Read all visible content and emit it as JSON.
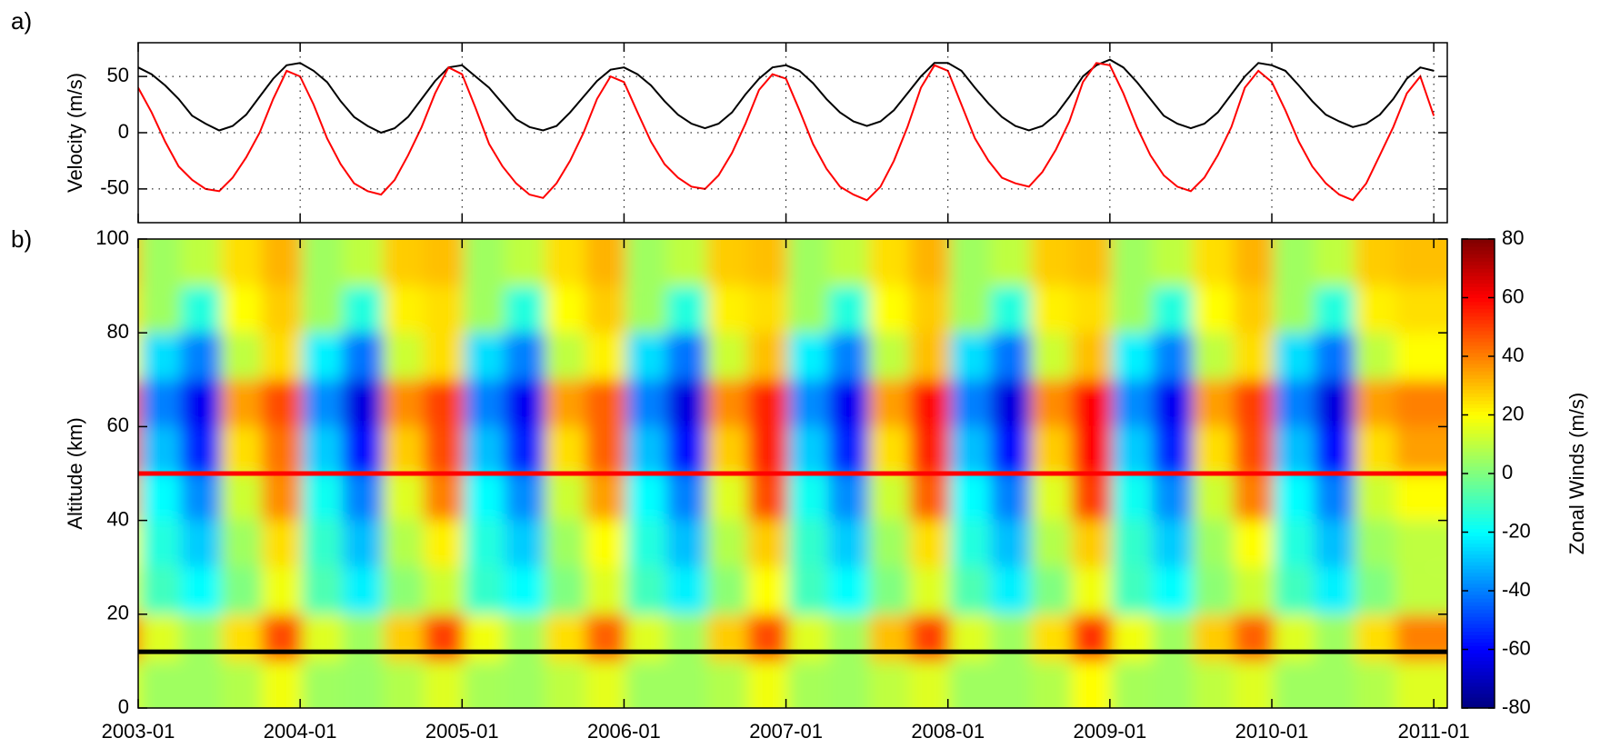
{
  "chart_data": [
    {
      "type": "line",
      "panel_label": "a)",
      "ylabel": "Velocity (m/s)",
      "x": [
        "2003-01",
        "2003-02",
        "2003-03",
        "2003-04",
        "2003-05",
        "2003-06",
        "2003-07",
        "2003-08",
        "2003-09",
        "2003-10",
        "2003-11",
        "2003-12",
        "2004-01",
        "2004-02",
        "2004-03",
        "2004-04",
        "2004-05",
        "2004-06",
        "2004-07",
        "2004-08",
        "2004-09",
        "2004-10",
        "2004-11",
        "2004-12",
        "2005-01",
        "2005-02",
        "2005-03",
        "2005-04",
        "2005-05",
        "2005-06",
        "2005-07",
        "2005-08",
        "2005-09",
        "2005-10",
        "2005-11",
        "2005-12",
        "2006-01",
        "2006-02",
        "2006-03",
        "2006-04",
        "2006-05",
        "2006-06",
        "2006-07",
        "2006-08",
        "2006-09",
        "2006-10",
        "2006-11",
        "2006-12",
        "2007-01",
        "2007-02",
        "2007-03",
        "2007-04",
        "2007-05",
        "2007-06",
        "2007-07",
        "2007-08",
        "2007-09",
        "2007-10",
        "2007-11",
        "2007-12",
        "2008-01",
        "2008-02",
        "2008-03",
        "2008-04",
        "2008-05",
        "2008-06",
        "2008-07",
        "2008-08",
        "2008-09",
        "2008-10",
        "2008-11",
        "2008-12",
        "2009-01",
        "2009-02",
        "2009-03",
        "2009-04",
        "2009-05",
        "2009-06",
        "2009-07",
        "2009-08",
        "2009-09",
        "2009-10",
        "2009-11",
        "2009-12",
        "2010-01",
        "2010-02",
        "2010-03",
        "2010-04",
        "2010-05",
        "2010-06",
        "2010-07",
        "2010-08",
        "2010-09",
        "2010-10",
        "2010-11",
        "2010-12",
        "2011-01"
      ],
      "series": [
        {
          "color": "#000000",
          "values": [
            58,
            52,
            42,
            30,
            15,
            8,
            2,
            6,
            16,
            32,
            48,
            60,
            62,
            55,
            45,
            28,
            14,
            6,
            0,
            4,
            14,
            30,
            46,
            58,
            60,
            50,
            40,
            26,
            12,
            5,
            2,
            6,
            18,
            32,
            46,
            56,
            58,
            52,
            42,
            28,
            16,
            8,
            4,
            8,
            18,
            34,
            48,
            58,
            60,
            55,
            44,
            30,
            18,
            10,
            6,
            10,
            20,
            35,
            50,
            62,
            62,
            55,
            40,
            26,
            14,
            6,
            2,
            6,
            16,
            32,
            50,
            60,
            65,
            58,
            45,
            30,
            15,
            8,
            4,
            8,
            18,
            34,
            50,
            62,
            60,
            55,
            42,
            28,
            16,
            10,
            5,
            8,
            16,
            30,
            48,
            58,
            55
          ]
        },
        {
          "color": "#ff0000",
          "values": [
            40,
            18,
            -8,
            -30,
            -42,
            -50,
            -52,
            -40,
            -22,
            0,
            30,
            55,
            50,
            25,
            -5,
            -28,
            -45,
            -52,
            -55,
            -42,
            -20,
            5,
            35,
            58,
            52,
            22,
            -10,
            -30,
            -45,
            -55,
            -58,
            -45,
            -25,
            0,
            30,
            50,
            45,
            18,
            -8,
            -28,
            -40,
            -48,
            -50,
            -38,
            -18,
            8,
            38,
            52,
            48,
            20,
            -10,
            -32,
            -48,
            -55,
            -60,
            -48,
            -25,
            5,
            40,
            60,
            55,
            25,
            -5,
            -25,
            -40,
            -45,
            -48,
            -35,
            -15,
            10,
            45,
            62,
            60,
            35,
            5,
            -20,
            -38,
            -48,
            -52,
            -40,
            -20,
            5,
            40,
            55,
            45,
            20,
            -8,
            -30,
            -45,
            -55,
            -60,
            -45,
            -20,
            5,
            35,
            50,
            15
          ]
        }
      ],
      "xlim": [
        "2003-01",
        "2011-02"
      ],
      "xticks": [
        "2003-01",
        "2004-01",
        "2005-01",
        "2006-01",
        "2007-01",
        "2008-01",
        "2009-01",
        "2010-01",
        "2011-01"
      ],
      "ylim": [
        -80,
        80
      ],
      "yticks": [
        -50,
        0,
        50
      ],
      "grid": true
    },
    {
      "type": "heatmap",
      "panel_label": "b)",
      "ylabel": "Altitude (km)",
      "colorbar_label": "Zonal Winds (m/s)",
      "colormap": "jet",
      "x": [
        "2003-01",
        "2003-04",
        "2003-07",
        "2003-10",
        "2004-01",
        "2004-04",
        "2004-07",
        "2004-10",
        "2005-01",
        "2005-04",
        "2005-07",
        "2005-10",
        "2006-01",
        "2006-04",
        "2006-07",
        "2006-10",
        "2007-01",
        "2007-04",
        "2007-07",
        "2007-10",
        "2008-01",
        "2008-04",
        "2008-07",
        "2008-10",
        "2009-01",
        "2009-04",
        "2009-07",
        "2009-10",
        "2010-01",
        "2010-04",
        "2010-07",
        "2010-10",
        "2011-01"
      ],
      "y": [
        5,
        15,
        25,
        35,
        45,
        55,
        65,
        75,
        85,
        95
      ],
      "z": [
        [
          15,
          5,
          5,
          8,
          18,
          5,
          4,
          8,
          15,
          6,
          5,
          10,
          16,
          5,
          5,
          8,
          18,
          6,
          5,
          10,
          15,
          5,
          5,
          8,
          20,
          6,
          5,
          10,
          15,
          5,
          5,
          8,
          15
        ],
        [
          45,
          15,
          5,
          25,
          48,
          15,
          5,
          28,
          50,
          18,
          5,
          25,
          45,
          15,
          5,
          28,
          48,
          15,
          5,
          30,
          50,
          15,
          5,
          25,
          52,
          18,
          5,
          28,
          45,
          15,
          5,
          25,
          40
        ],
        [
          15,
          -10,
          -20,
          0,
          18,
          -8,
          -22,
          2,
          12,
          -12,
          -20,
          0,
          15,
          -10,
          -22,
          2,
          20,
          -10,
          -20,
          0,
          15,
          -8,
          -22,
          0,
          18,
          -10,
          -20,
          2,
          12,
          -10,
          -22,
          0,
          10
        ],
        [
          20,
          -15,
          -28,
          5,
          25,
          -12,
          -30,
          8,
          22,
          -15,
          -28,
          5,
          20,
          -15,
          -30,
          8,
          28,
          -12,
          -28,
          5,
          25,
          -15,
          -30,
          8,
          28,
          -12,
          -28,
          5,
          20,
          -15,
          -30,
          5,
          10
        ],
        [
          35,
          -20,
          -38,
          12,
          38,
          -18,
          -40,
          15,
          40,
          -20,
          -38,
          12,
          35,
          -20,
          -40,
          15,
          48,
          -18,
          -38,
          12,
          45,
          -20,
          -40,
          15,
          50,
          -18,
          -38,
          12,
          40,
          -20,
          -40,
          12,
          20
        ],
        [
          45,
          -30,
          -55,
          25,
          42,
          -28,
          -58,
          28,
          48,
          -30,
          -55,
          25,
          45,
          -30,
          -58,
          28,
          55,
          -28,
          -55,
          25,
          55,
          -30,
          -58,
          28,
          60,
          -28,
          -55,
          25,
          48,
          -30,
          -58,
          25,
          35
        ],
        [
          45,
          -40,
          -62,
          35,
          48,
          -38,
          -65,
          38,
          50,
          -40,
          -62,
          35,
          45,
          -40,
          -65,
          38,
          55,
          -38,
          -62,
          35,
          58,
          -40,
          -65,
          38,
          60,
          -38,
          -62,
          35,
          50,
          -40,
          -65,
          35,
          40
        ],
        [
          20,
          -25,
          -40,
          10,
          25,
          -22,
          -42,
          12,
          25,
          -25,
          -40,
          10,
          22,
          -25,
          -42,
          12,
          30,
          -22,
          -40,
          10,
          30,
          -25,
          -42,
          12,
          30,
          -22,
          -40,
          10,
          25,
          -25,
          -42,
          10,
          20
        ],
        [
          25,
          5,
          -15,
          20,
          28,
          5,
          -15,
          22,
          25,
          5,
          -15,
          20,
          28,
          5,
          -15,
          22,
          25,
          5,
          -15,
          20,
          28,
          5,
          -15,
          22,
          25,
          5,
          -15,
          20,
          28,
          5,
          -15,
          22,
          25
        ],
        [
          30,
          5,
          10,
          25,
          32,
          5,
          10,
          28,
          30,
          5,
          10,
          25,
          32,
          5,
          10,
          28,
          30,
          5,
          10,
          25,
          32,
          5,
          10,
          28,
          30,
          5,
          10,
          25,
          32,
          5,
          10,
          28,
          30
        ]
      ],
      "hlines": [
        {
          "value": 50,
          "color": "#ff0000"
        },
        {
          "value": 12,
          "color": "#000000"
        }
      ],
      "xlim": [
        "2003-01",
        "2011-02"
      ],
      "xticks": [
        "2003-01",
        "2004-01",
        "2005-01",
        "2006-01",
        "2007-01",
        "2008-01",
        "2009-01",
        "2010-01",
        "2011-01"
      ],
      "ylim": [
        0,
        100
      ],
      "yticks": [
        0,
        20,
        40,
        60,
        80,
        100
      ],
      "clim": [
        -80,
        80
      ],
      "cticks": [
        -80,
        -60,
        -40,
        -20,
        0,
        20,
        40,
        60,
        80
      ]
    }
  ]
}
